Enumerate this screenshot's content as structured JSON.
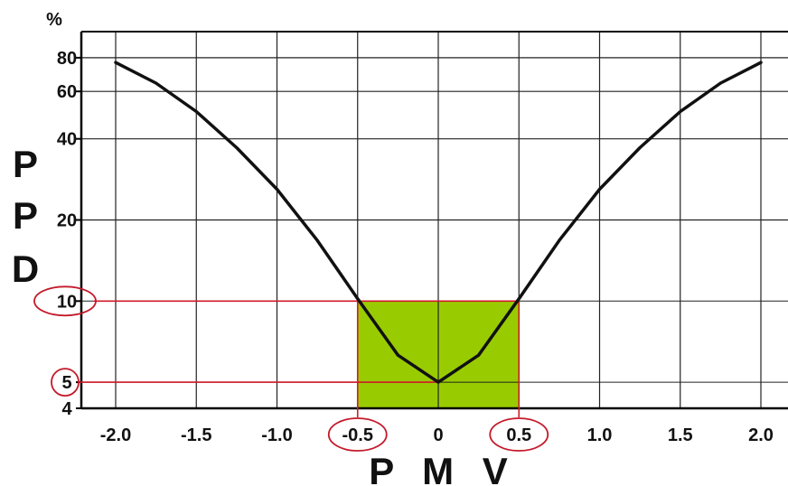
{
  "chart_data": {
    "type": "line",
    "title": "",
    "xlabel": "P M V",
    "ylabel": [
      "P",
      "P",
      "D"
    ],
    "yunit": "%",
    "xlim": [
      -2.0,
      2.0
    ],
    "ylim": [
      4,
      100
    ],
    "yscale": "log",
    "grid": true,
    "x_ticks": [
      "-2.0",
      "-1.5",
      "-1.0",
      "-0.5",
      "0",
      "0.5",
      "1.0",
      "1.5",
      "2.0"
    ],
    "y_ticks": [
      4,
      5,
      10,
      20,
      40,
      60,
      80
    ],
    "series": [
      {
        "x": [
          -2.0,
          -1.75,
          -1.5,
          -1.25,
          -1.0,
          -0.75,
          -0.5,
          -0.25,
          0,
          0.25,
          0.5,
          0.75,
          1.0,
          1.25,
          1.5,
          1.75,
          2.0
        ],
        "y": [
          76.8,
          64.4,
          50.5,
          37.1,
          26.0,
          16.8,
          10.2,
          6.3,
          5.0,
          6.3,
          10.2,
          16.8,
          26.0,
          37.1,
          50.5,
          64.4,
          76.8
        ]
      }
    ],
    "highlight_region": {
      "x": [
        -0.5,
        0.5
      ],
      "y": [
        4,
        10
      ]
    },
    "reference_lines": {
      "y": [
        10,
        5
      ],
      "x": [
        -0.5,
        0.5
      ]
    },
    "circled_labels": [
      "10",
      "5",
      "-0.5",
      "0.5"
    ],
    "colors": {
      "curve": "#111111",
      "grid": "#222222",
      "highlight_fill": "#99cc00",
      "reference_line": "#d11a2a",
      "circle": "#c41a2a"
    }
  }
}
